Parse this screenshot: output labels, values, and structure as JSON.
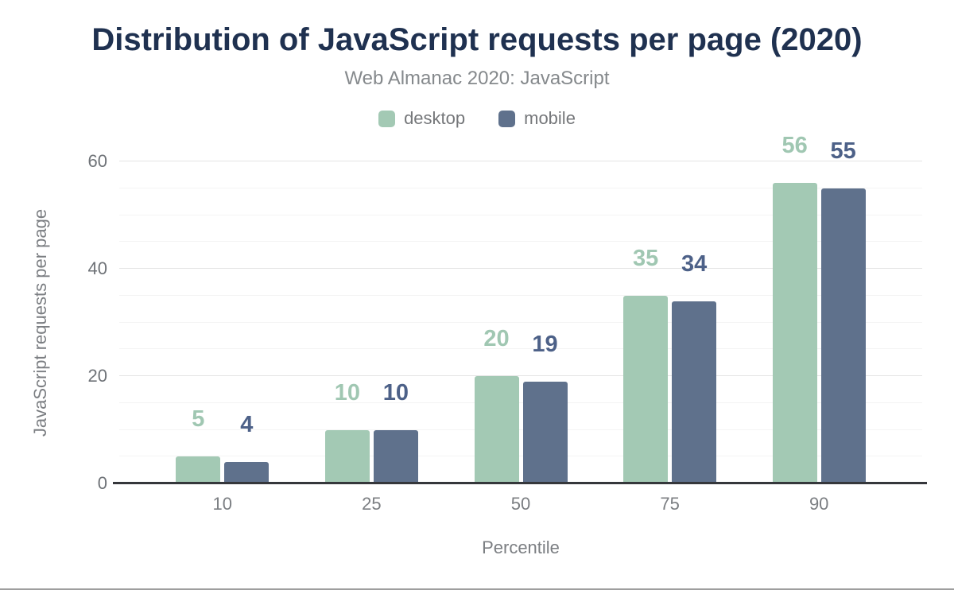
{
  "chart_data": {
    "type": "bar",
    "title": "Distribution of JavaScript requests per page (2020)",
    "subtitle": "Web Almanac 2020: JavaScript",
    "xlabel": "Percentile",
    "ylabel": "JavaScript requests per page",
    "categories": [
      "10",
      "25",
      "50",
      "75",
      "90"
    ],
    "series": [
      {
        "name": "desktop",
        "values": [
          5,
          10,
          20,
          35,
          56
        ],
        "color": "#a3c9b4",
        "label_color": "#a0c7b2"
      },
      {
        "name": "mobile",
        "values": [
          4,
          10,
          19,
          34,
          55
        ],
        "color": "#5f718c",
        "label_color": "#4d6188"
      }
    ],
    "ylim": [
      0,
      60
    ],
    "yticks": [
      0,
      20,
      40,
      60
    ],
    "grid": {
      "minor_step": 5,
      "major_step": 20
    },
    "legend_position": "top",
    "data_labels": true
  }
}
